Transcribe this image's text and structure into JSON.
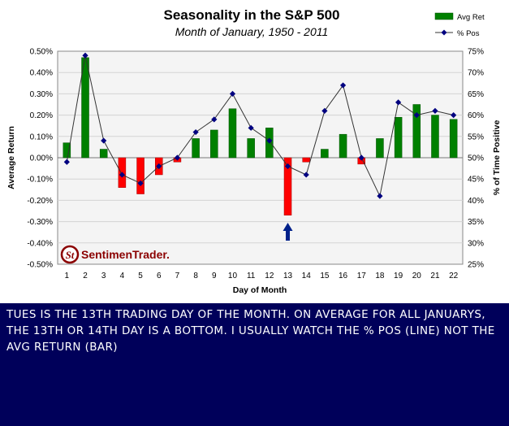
{
  "chart_data": {
    "type": "bar",
    "title": "Seasonality in the S&P 500",
    "subtitle": "Month of January, 1950 - 2011",
    "xlabel": "Day of Month",
    "ylabel": "Average Return",
    "y2label": "% of Time Positive",
    "categories": [
      "1",
      "2",
      "3",
      "4",
      "5",
      "6",
      "7",
      "8",
      "9",
      "10",
      "11",
      "12",
      "13",
      "14",
      "15",
      "16",
      "17",
      "18",
      "19",
      "20",
      "21",
      "22"
    ],
    "ylim": [
      -0.5,
      0.5
    ],
    "y2lim": [
      25,
      75
    ],
    "y_ticks": [
      "0.50%",
      "0.40%",
      "0.30%",
      "0.20%",
      "0.10%",
      "0.00%",
      "-0.10%",
      "-0.20%",
      "-0.30%",
      "-0.40%",
      "-0.50%"
    ],
    "y2_ticks": [
      "75%",
      "70%",
      "65%",
      "60%",
      "55%",
      "50%",
      "45%",
      "40%",
      "35%",
      "30%",
      "25%"
    ],
    "grid": true,
    "legend_position": "top-right",
    "series": [
      {
        "name": "Avg Ret",
        "type": "bar",
        "axis": "left",
        "values": [
          0.07,
          0.47,
          0.04,
          -0.14,
          -0.17,
          -0.08,
          -0.02,
          0.09,
          0.13,
          0.23,
          0.09,
          0.14,
          -0.27,
          -0.02,
          0.04,
          0.11,
          -0.03,
          0.09,
          0.19,
          0.25,
          0.2,
          0.18
        ]
      },
      {
        "name": "% Pos",
        "type": "line",
        "axis": "right",
        "values": [
          49,
          74,
          54,
          46,
          44,
          48,
          50,
          56,
          59,
          65,
          57,
          54,
          48,
          46,
          61,
          67,
          50,
          41,
          63,
          60,
          61,
          60
        ]
      }
    ],
    "colors": {
      "positive_bar": "#008000",
      "negative_bar": "#ff0000",
      "line": "#333333",
      "marker": "#000080",
      "plot_background": "#f4f4f4",
      "arrow": "#00208a"
    },
    "annotation": {
      "type": "arrow",
      "points_to_category": "13"
    }
  },
  "logo": {
    "text": "SentimenTrader."
  },
  "note": {
    "text": "TUES IS THE 13TH TRADING DAY OF THE MONTH. ON AVERAGE FOR ALL JANUARYS, THE 13TH OR 14TH DAY IS A BOTTOM. I USUALLY WATCH THE % POS (LINE) NOT THE AVG RETURN (BAR)",
    "background": "#00005a",
    "color": "#ffffff"
  }
}
